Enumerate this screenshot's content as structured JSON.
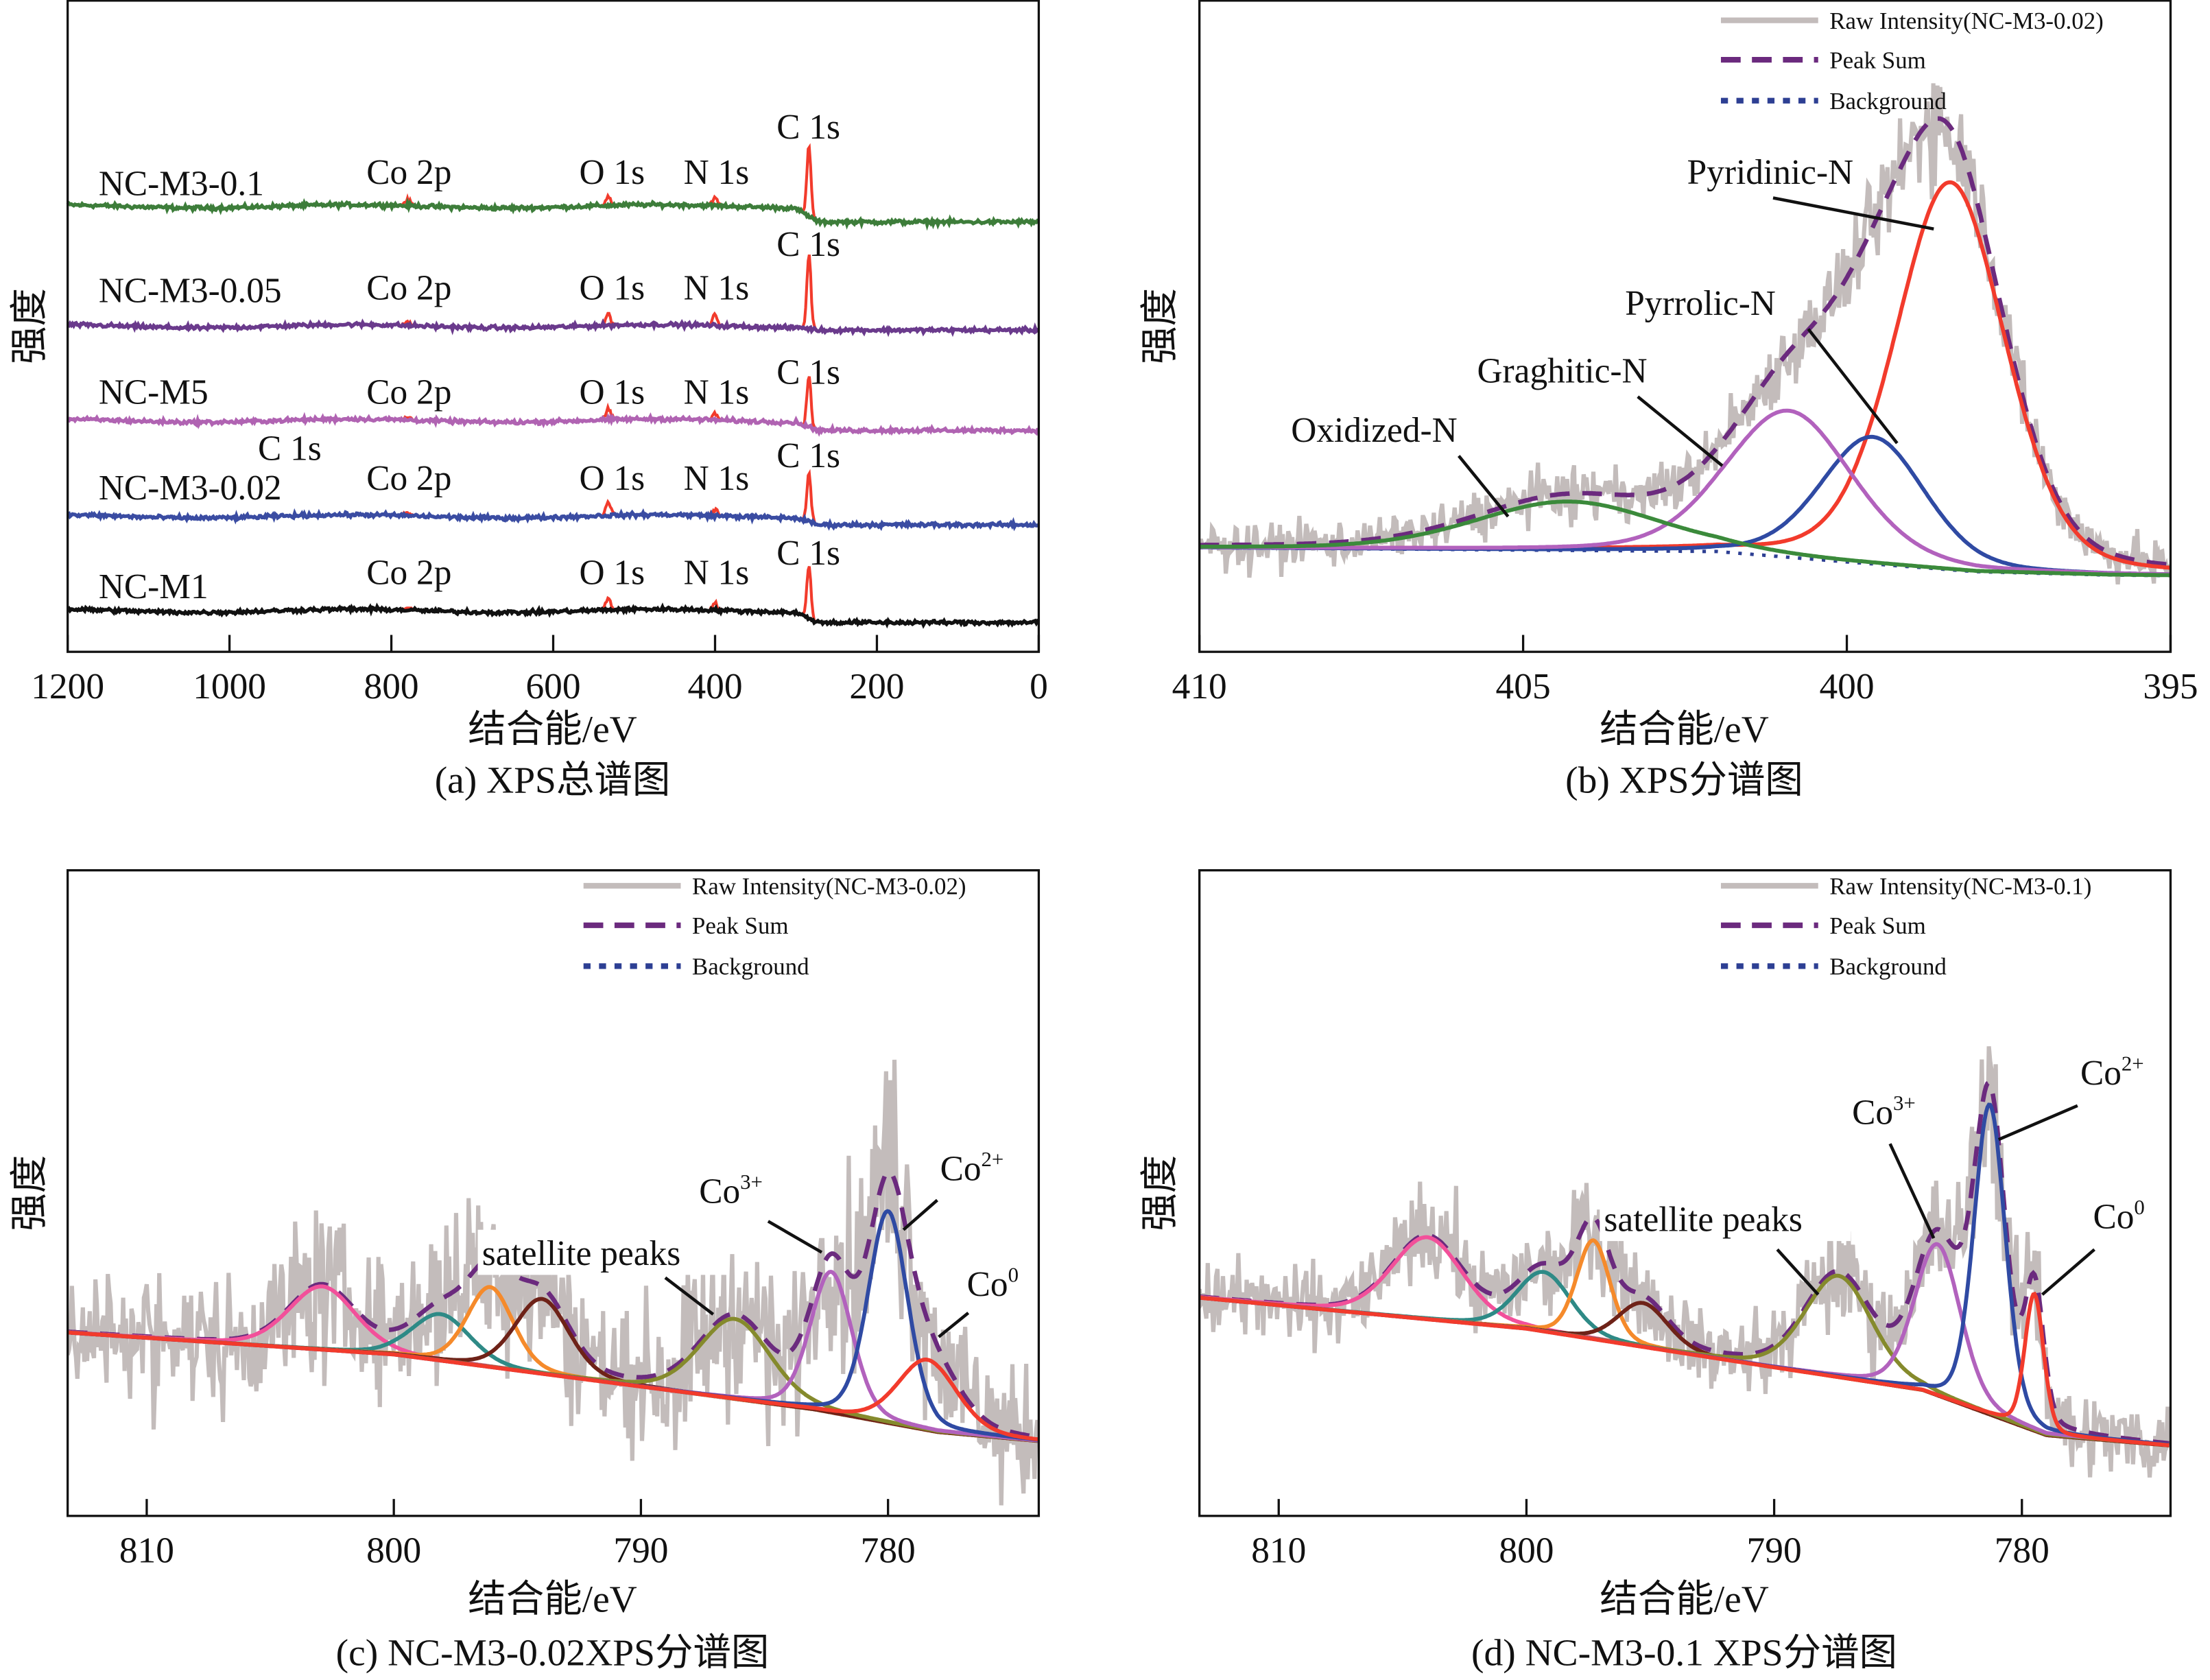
{
  "colors": {
    "raw": "#c3bcbb",
    "peak_sum": "#6b2a7e",
    "background": "#2d3f93",
    "pink": "#f2509a",
    "teal": "#2e8a86",
    "orange": "#f58a2b",
    "brown": "#6e2218",
    "olive": "#858a2c",
    "violet": "#b262bd",
    "blue": "#2f4aa3",
    "red": "#f23b2c",
    "green": "#3b8a3b"
  },
  "chart_data": [
    {
      "type": "line",
      "caption": "(a) XPS总谱图",
      "xlabel": "结合能/eV",
      "ylabel": "强度",
      "xlim": [
        1200,
        0
      ],
      "ylim": [
        0,
        100
      ],
      "xticks": [
        1200,
        1000,
        800,
        600,
        400,
        200,
        0
      ],
      "peak_positions": {
        "Co 2p": 780,
        "O 1s": 532,
        "N 1s": 400,
        "C 1s": 284
      },
      "peak_labels": [
        "Co 2p",
        "O 1s",
        "N 1s",
        "C 1s"
      ],
      "extra_label": "C 1s",
      "series": [
        {
          "name": "NC-M3-0.1",
          "color": "#3d7d3a",
          "level_before": 68.4,
          "level_after": 66.0,
          "peaks": {
            "C 1s": 11.0,
            "O 1s": 1.4,
            "N 1s": 1.2,
            "Co 2p": 0.8
          }
        },
        {
          "name": "NC-M3-0.05",
          "color": "#6a3a8c",
          "level_before": 50.0,
          "level_after": 49.4,
          "peaks": {
            "C 1s": 11.5,
            "O 1s": 1.8,
            "N 1s": 1.6,
            "Co 2p": 0.5
          }
        },
        {
          "name": "NC-M5",
          "color": "#b063b2",
          "level_before": 35.5,
          "level_after": 34.0,
          "peaks": {
            "C 1s": 7.8,
            "O 1s": 1.6,
            "N 1s": 1.0,
            "Co 2p": 0.4
          }
        },
        {
          "name": "NC-M3-0.02",
          "color": "#3a4ca2",
          "level_before": 20.8,
          "level_after": 19.5,
          "peaks": {
            "C 1s": 7.4,
            "O 1s": 2.2,
            "N 1s": 1.0,
            "Co 2p": 0.4
          }
        },
        {
          "name": "NC-M1",
          "color": "#111111",
          "level_before": 6.3,
          "level_after": 4.5,
          "peaks": {
            "C 1s": 8.2,
            "O 1s": 1.8,
            "N 1s": 1.0,
            "Co 2p": 0.4
          }
        }
      ]
    },
    {
      "type": "line",
      "caption": "(b) XPS分谱图",
      "xlabel": "结合能/eV",
      "ylabel": "强度",
      "xlim": [
        410,
        395
      ],
      "ylim": [
        0,
        100
      ],
      "xticks": [
        410,
        405,
        400,
        395
      ],
      "legend": {
        "placement": "top-right",
        "entries": [
          "Raw Intensity(NC-M3-0.02)",
          "Peak Sum",
          "Background"
        ]
      },
      "background": [
        [
          410,
          16.0
        ],
        [
          402,
          15.4
        ],
        [
          400,
          13.8
        ],
        [
          398,
          12.3
        ],
        [
          396,
          11.8
        ],
        [
          395,
          11.7
        ]
      ],
      "components": [
        {
          "name": "Pyridinic-N",
          "center": 398.4,
          "height": 59.5,
          "fwhm": 2.0,
          "color": "#f23b2c"
        },
        {
          "name": "Pyrrolic-N",
          "center": 399.6,
          "height": 19.5,
          "fwhm": 1.9,
          "color": "#2f4aa3"
        },
        {
          "name": "Graghitic-N",
          "center": 400.9,
          "height": 22.5,
          "fwhm": 2.3,
          "color": "#b262bd"
        },
        {
          "name": "Oxidized-N",
          "center": 404.3,
          "height": 7.5,
          "fwhm": 3.4,
          "color": "#3b8a3b"
        }
      ]
    },
    {
      "type": "line",
      "caption": "(c) NC-M3-0.02XPS分谱图",
      "xlabel": "结合能/eV",
      "ylabel": "强度",
      "xlim": [
        813.2,
        773.9
      ],
      "ylim": [
        0,
        100
      ],
      "xticks": [
        810,
        800,
        790,
        780
      ],
      "legend": {
        "placement": "top-right",
        "entries": [
          "Raw Intensity(NC-M3-0.02)",
          "Peak Sum",
          "Background"
        ]
      },
      "labels": {
        "co3": "Co",
        "co3_sup": "3+",
        "co2": "Co",
        "co2_sup": "2+",
        "co0": "Co",
        "co0_sup": "0",
        "satellite": "satellite peaks"
      },
      "background": [
        [
          813.2,
          28.4
        ],
        [
          800,
          25.0
        ],
        [
          790,
          20.0
        ],
        [
          783,
          16.5
        ],
        [
          778,
          13.0
        ],
        [
          773.9,
          11.6
        ]
      ],
      "components": [
        {
          "name": "satellite",
          "center": 802.9,
          "height": 9.8,
          "fwhm": 3.2,
          "color": "#f2509a"
        },
        {
          "name": "satellite",
          "center": 798.1,
          "height": 7.2,
          "fwhm": 2.8,
          "color": "#2e8a86"
        },
        {
          "name": "satellite",
          "center": 796.1,
          "height": 12.4,
          "fwhm": 2.2,
          "color": "#f58a2b"
        },
        {
          "name": "satellite",
          "center": 794.0,
          "height": 11.6,
          "fwhm": 2.6,
          "color": "#6e2218"
        },
        {
          "name": "satellite",
          "center": 786.2,
          "height": 12.4,
          "fwhm": 3.4,
          "color": "#858a2c"
        },
        {
          "name": "Co3+",
          "center": 782.3,
          "height": 21.8,
          "fwhm": 2.0,
          "color": "#b262bd"
        },
        {
          "name": "Co2+",
          "center": 780.0,
          "height": 32.8,
          "fwhm": 1.9,
          "color": "#2f4aa3"
        },
        {
          "name": "Co0",
          "center": 778.4,
          "height": 10.9,
          "fwhm": 2.8,
          "color": "#f23b2c"
        }
      ]
    },
    {
      "type": "line",
      "caption": "(d) NC-M3-0.1 XPS分谱图",
      "xlabel": "结合能/eV",
      "ylabel": "强度",
      "xlim": [
        813.2,
        774.0
      ],
      "ylim": [
        0,
        100
      ],
      "xticks": [
        810,
        800,
        790,
        780
      ],
      "legend": {
        "placement": "top-right",
        "entries": [
          "Raw Intensity(NC-M3-0.1)",
          "Peak Sum",
          "Background"
        ]
      },
      "labels": {
        "co3": "Co",
        "co3_sup": "3+",
        "co2": "Co",
        "co2_sup": "2+",
        "co0": "Co",
        "co0_sup": "0",
        "satellite": "satellite peaks"
      },
      "background": [
        [
          813.2,
          33.8
        ],
        [
          800,
          29.0
        ],
        [
          790,
          23.0
        ],
        [
          784,
          19.5
        ],
        [
          779,
          12.5
        ],
        [
          774.0,
          10.9
        ]
      ],
      "components": [
        {
          "name": "satellite",
          "center": 804.0,
          "height": 12.7,
          "fwhm": 3.4,
          "color": "#f2509a"
        },
        {
          "name": "satellite",
          "center": 799.3,
          "height": 9.2,
          "fwhm": 2.6,
          "color": "#2e8a86"
        },
        {
          "name": "satellite",
          "center": 797.3,
          "height": 15.3,
          "fwhm": 1.6,
          "color": "#f58a2b"
        },
        {
          "name": "satellite",
          "center": 795.3,
          "height": 6.8,
          "fwhm": 2.4,
          "color": "#6e2218"
        },
        {
          "name": "satellite",
          "center": 787.4,
          "height": 15.7,
          "fwhm": 3.2,
          "color": "#858a2c"
        },
        {
          "name": "Co3+",
          "center": 783.4,
          "height": 23.4,
          "fwhm": 2.2,
          "color": "#b262bd"
        },
        {
          "name": "Co2+",
          "center": 781.3,
          "height": 48.0,
          "fwhm": 1.5,
          "color": "#2f4aa3"
        },
        {
          "name": "Co0",
          "center": 779.5,
          "height": 21.2,
          "fwhm": 0.9,
          "color": "#f23b2c"
        }
      ]
    }
  ]
}
